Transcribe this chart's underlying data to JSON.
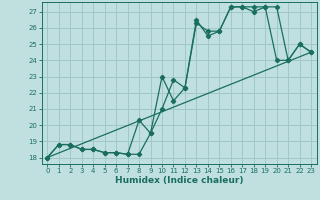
{
  "title": "",
  "xlabel": "Humidex (Indice chaleur)",
  "ylabel": "",
  "bg_color": "#c0e0e0",
  "grid_color": "#a0c8c8",
  "line_color": "#1a6e60",
  "xlim": [
    -0.5,
    23.5
  ],
  "ylim": [
    17.6,
    27.6
  ],
  "yticks": [
    18,
    19,
    20,
    21,
    22,
    23,
    24,
    25,
    26,
    27
  ],
  "xticks": [
    0,
    1,
    2,
    3,
    4,
    5,
    6,
    7,
    8,
    9,
    10,
    11,
    12,
    13,
    14,
    15,
    16,
    17,
    18,
    19,
    20,
    21,
    22,
    23
  ],
  "series1_x": [
    0,
    1,
    2,
    3,
    4,
    5,
    6,
    7,
    8,
    9,
    10,
    11,
    12,
    13,
    14,
    15,
    16,
    17,
    18,
    19,
    20,
    21,
    22,
    23
  ],
  "series1_y": [
    18.0,
    18.8,
    18.8,
    18.5,
    18.5,
    18.3,
    18.3,
    18.2,
    18.2,
    19.5,
    21.0,
    22.8,
    22.3,
    26.3,
    25.8,
    25.8,
    27.3,
    27.3,
    27.3,
    27.3,
    24.0,
    24.0,
    25.0,
    24.5
  ],
  "series2_x": [
    0,
    1,
    2,
    3,
    4,
    5,
    6,
    7,
    8,
    9,
    10,
    11,
    12,
    13,
    14,
    15,
    16,
    17,
    18,
    19,
    20,
    21,
    22,
    23
  ],
  "series2_y": [
    18.0,
    18.8,
    18.8,
    18.5,
    18.5,
    18.3,
    18.3,
    18.2,
    20.3,
    19.5,
    23.0,
    21.5,
    22.3,
    26.5,
    25.5,
    25.8,
    27.3,
    27.3,
    27.0,
    27.3,
    27.3,
    24.0,
    25.0,
    24.5
  ],
  "series3_x": [
    0,
    23
  ],
  "series3_y": [
    18.0,
    24.5
  ]
}
